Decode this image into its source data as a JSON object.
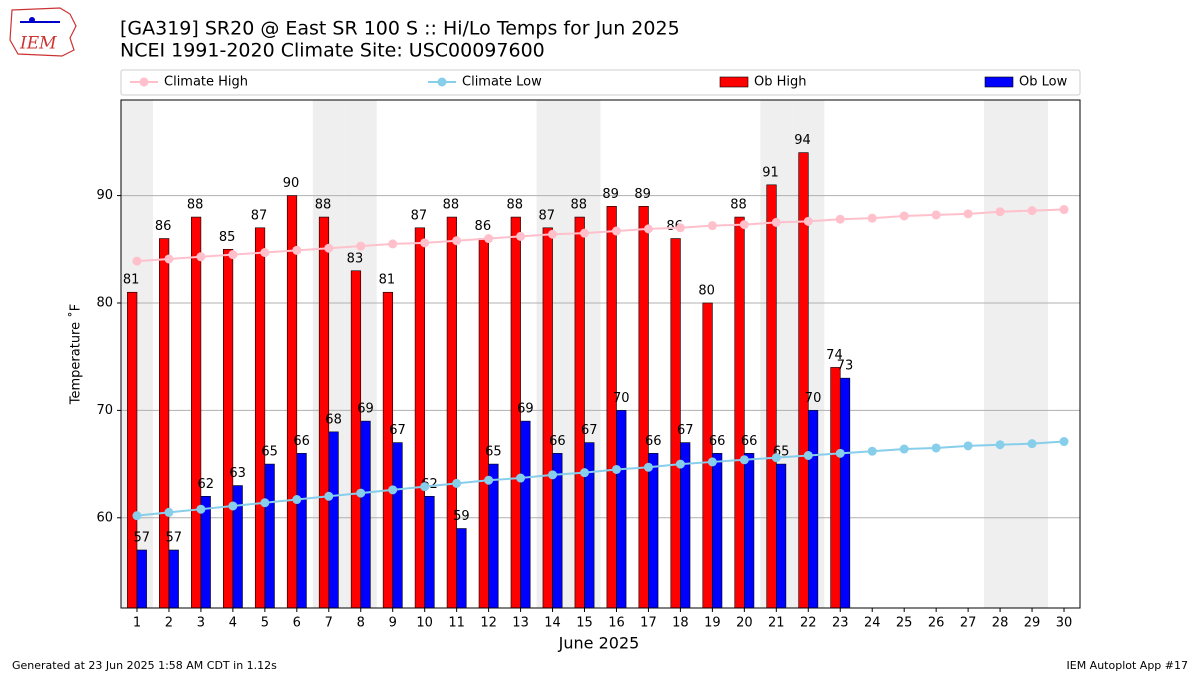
{
  "logo_text": "IEM",
  "footer_left": "Generated at 23 Jun 2025 1:58 AM CDT in 1.12s",
  "footer_right": "IEM Autoplot App #17",
  "chart_data": {
    "type": "bar",
    "title": "[GA319] SR20 @ East SR 100 S :: Hi/Lo Temps for Jun 2025",
    "subtitle": "NCEI 1991-2020 Climate Site: USC00097600",
    "x_label": "June 2025",
    "y_label": "Temperature ˚F",
    "x": [
      1,
      2,
      3,
      4,
      5,
      6,
      7,
      8,
      9,
      10,
      11,
      12,
      13,
      14,
      15,
      16,
      17,
      18,
      19,
      20,
      21,
      22,
      23,
      24,
      25,
      26,
      27,
      28,
      29,
      30
    ],
    "xlim": [
      0.5,
      30.5
    ],
    "xticks": [
      1,
      2,
      3,
      4,
      5,
      6,
      7,
      8,
      9,
      10,
      11,
      12,
      13,
      14,
      15,
      16,
      17,
      18,
      19,
      20,
      21,
      22,
      23,
      24,
      25,
      26,
      27,
      28,
      29,
      30
    ],
    "ylim": [
      51.6,
      98.9
    ],
    "yticks": [
      60,
      70,
      80,
      90
    ],
    "grid": true,
    "shaded_days": [
      1,
      7,
      8,
      14,
      15,
      21,
      22,
      28,
      29
    ],
    "series": [
      {
        "name": "Climate High",
        "kind": "line",
        "color": "#ffc0cb",
        "values": [
          83.9,
          84.1,
          84.3,
          84.5,
          84.7,
          84.9,
          85.1,
          85.3,
          85.5,
          85.6,
          85.8,
          86.0,
          86.2,
          86.4,
          86.5,
          86.7,
          86.9,
          87.0,
          87.2,
          87.3,
          87.5,
          87.6,
          87.8,
          87.9,
          88.1,
          88.2,
          88.3,
          88.5,
          88.6,
          88.7
        ]
      },
      {
        "name": "Climate Low",
        "kind": "line",
        "color": "#87ceeb",
        "values": [
          60.2,
          60.5,
          60.8,
          61.1,
          61.4,
          61.7,
          62.0,
          62.3,
          62.6,
          62.9,
          63.2,
          63.5,
          63.7,
          64.0,
          64.2,
          64.5,
          64.7,
          65.0,
          65.2,
          65.4,
          65.6,
          65.8,
          66.0,
          66.2,
          66.4,
          66.5,
          66.7,
          66.8,
          66.9,
          67.1
        ]
      },
      {
        "name": "Ob High",
        "kind": "bar",
        "color": "#ff0000",
        "values": [
          81,
          86,
          88,
          85,
          87,
          90,
          88,
          83,
          81,
          87,
          88,
          86,
          88,
          87,
          88,
          89,
          89,
          86,
          80,
          88,
          91,
          94,
          74,
          null,
          null,
          null,
          null,
          null,
          null,
          null
        ]
      },
      {
        "name": "Ob Low",
        "kind": "bar",
        "color": "#0000ff",
        "values": [
          57,
          57,
          62,
          63,
          65,
          66,
          68,
          69,
          67,
          62,
          59,
          65,
          69,
          66,
          67,
          70,
          66,
          67,
          66,
          66,
          65,
          70,
          73,
          null,
          null,
          null,
          null,
          null,
          null,
          null
        ]
      }
    ]
  }
}
